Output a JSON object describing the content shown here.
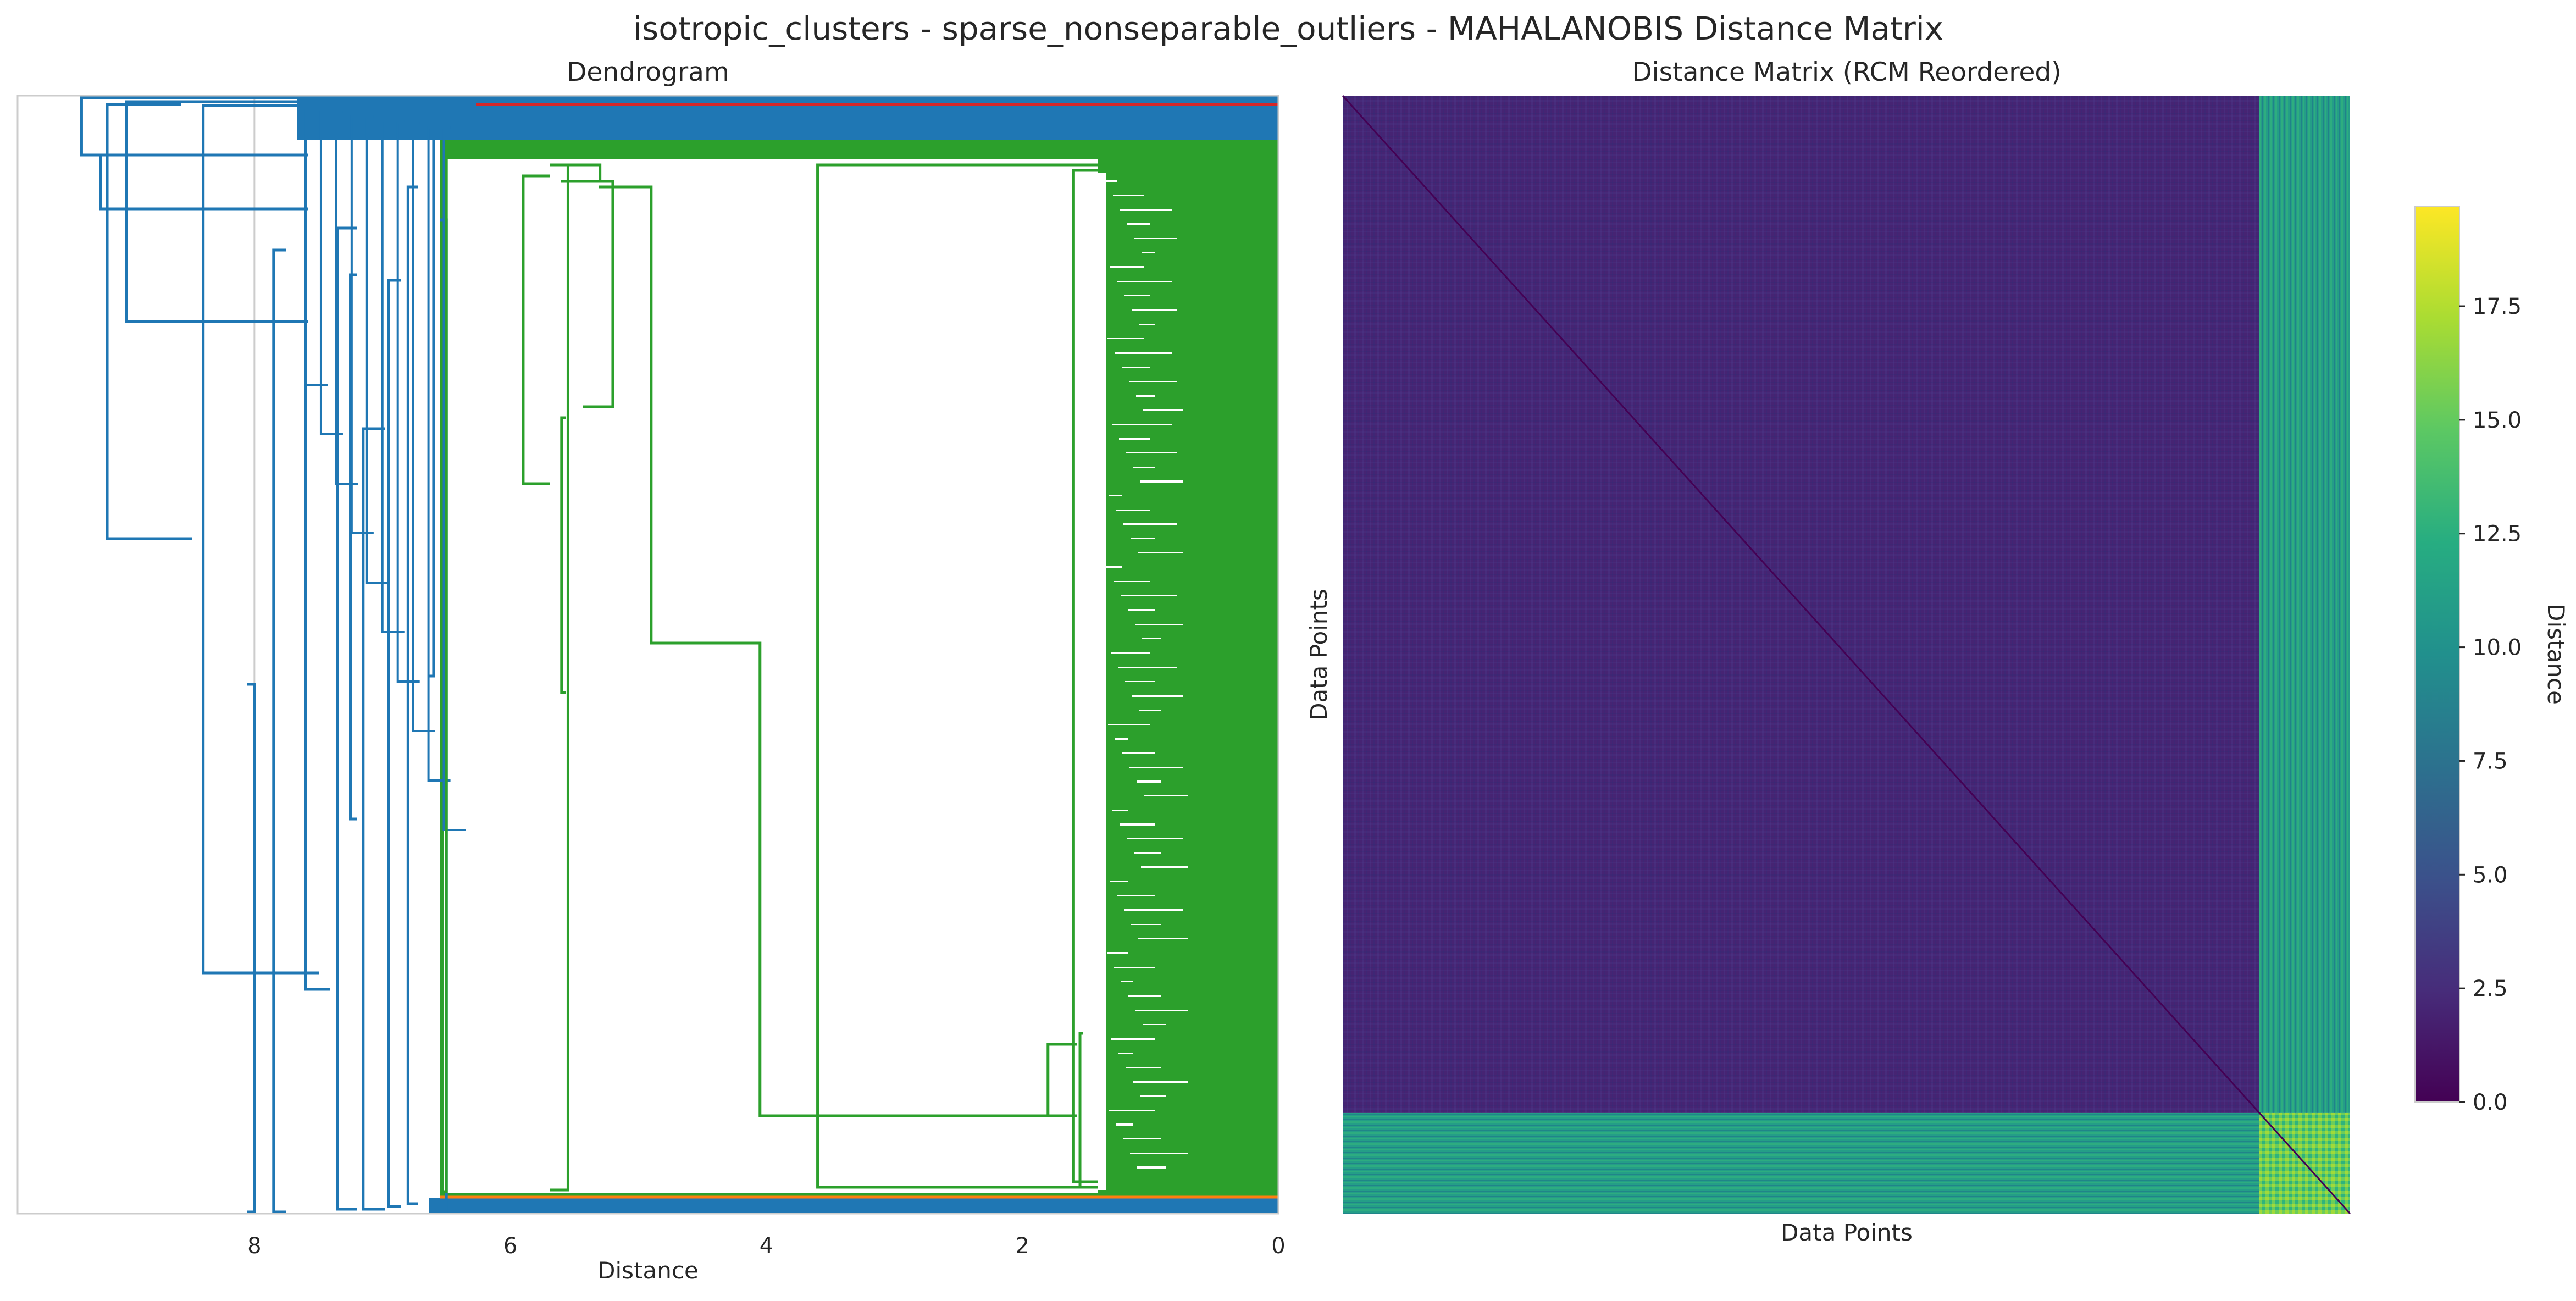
{
  "figure": {
    "title": "isotropic_clusters - sparse_nonseparable_outliers - MAHALANOBIS Distance Matrix"
  },
  "chart_data": [
    {
      "type": "dendrogram",
      "title": "Dendrogram",
      "xlabel": "Distance",
      "ylabel": "",
      "xlim": [
        9.85,
        0
      ],
      "xticks": [
        8,
        6,
        4,
        2,
        0
      ],
      "xtick_labels": [
        "8",
        "6",
        "4",
        "2",
        "0"
      ],
      "grid": true,
      "orientation": "left",
      "colors": {
        "above_threshold": "#1f77b4",
        "cluster_a": "#2ca02c",
        "cluster_b": "#d62728",
        "cluster_c": "#ff7f0e"
      },
      "major_merges": [
        {
          "distance": 9.35,
          "color": "#1f77b4"
        },
        {
          "distance": 9.15,
          "color": "#1f77b4"
        },
        {
          "distance": 8.4,
          "color": "#1f77b4"
        },
        {
          "distance": 7.55,
          "color": "#1f77b4"
        },
        {
          "distance": 6.5,
          "color": "#1f77b4"
        },
        {
          "distance": 5.55,
          "color": "#2ca02c"
        },
        {
          "distance": 4.05,
          "color": "#2ca02c"
        },
        {
          "distance": 1.8,
          "color": "#2ca02c"
        },
        {
          "distance": 1.55,
          "color": "#2ca02c"
        }
      ]
    },
    {
      "type": "heatmap",
      "title": "Distance Matrix (RCM Reordered)",
      "xlabel": "Data Points",
      "ylabel": "Data Points",
      "colormap": "viridis",
      "blocks": {
        "main_cluster_fraction": 0.91,
        "outlier_fraction": 0.09
      },
      "typical_values": {
        "within_main": 2.0,
        "main_to_outlier": 11.0,
        "within_outlier": 14.0,
        "diagonal": 0.0
      },
      "colorbar": {
        "label": "Distance",
        "range": [
          0,
          19.7
        ],
        "ticks": [
          0.0,
          2.5,
          5.0,
          7.5,
          10.0,
          12.5,
          15.0,
          17.5
        ],
        "tick_labels": [
          "0.0",
          "2.5",
          "5.0",
          "7.5",
          "10.0",
          "12.5",
          "15.0",
          "17.5"
        ]
      }
    }
  ]
}
